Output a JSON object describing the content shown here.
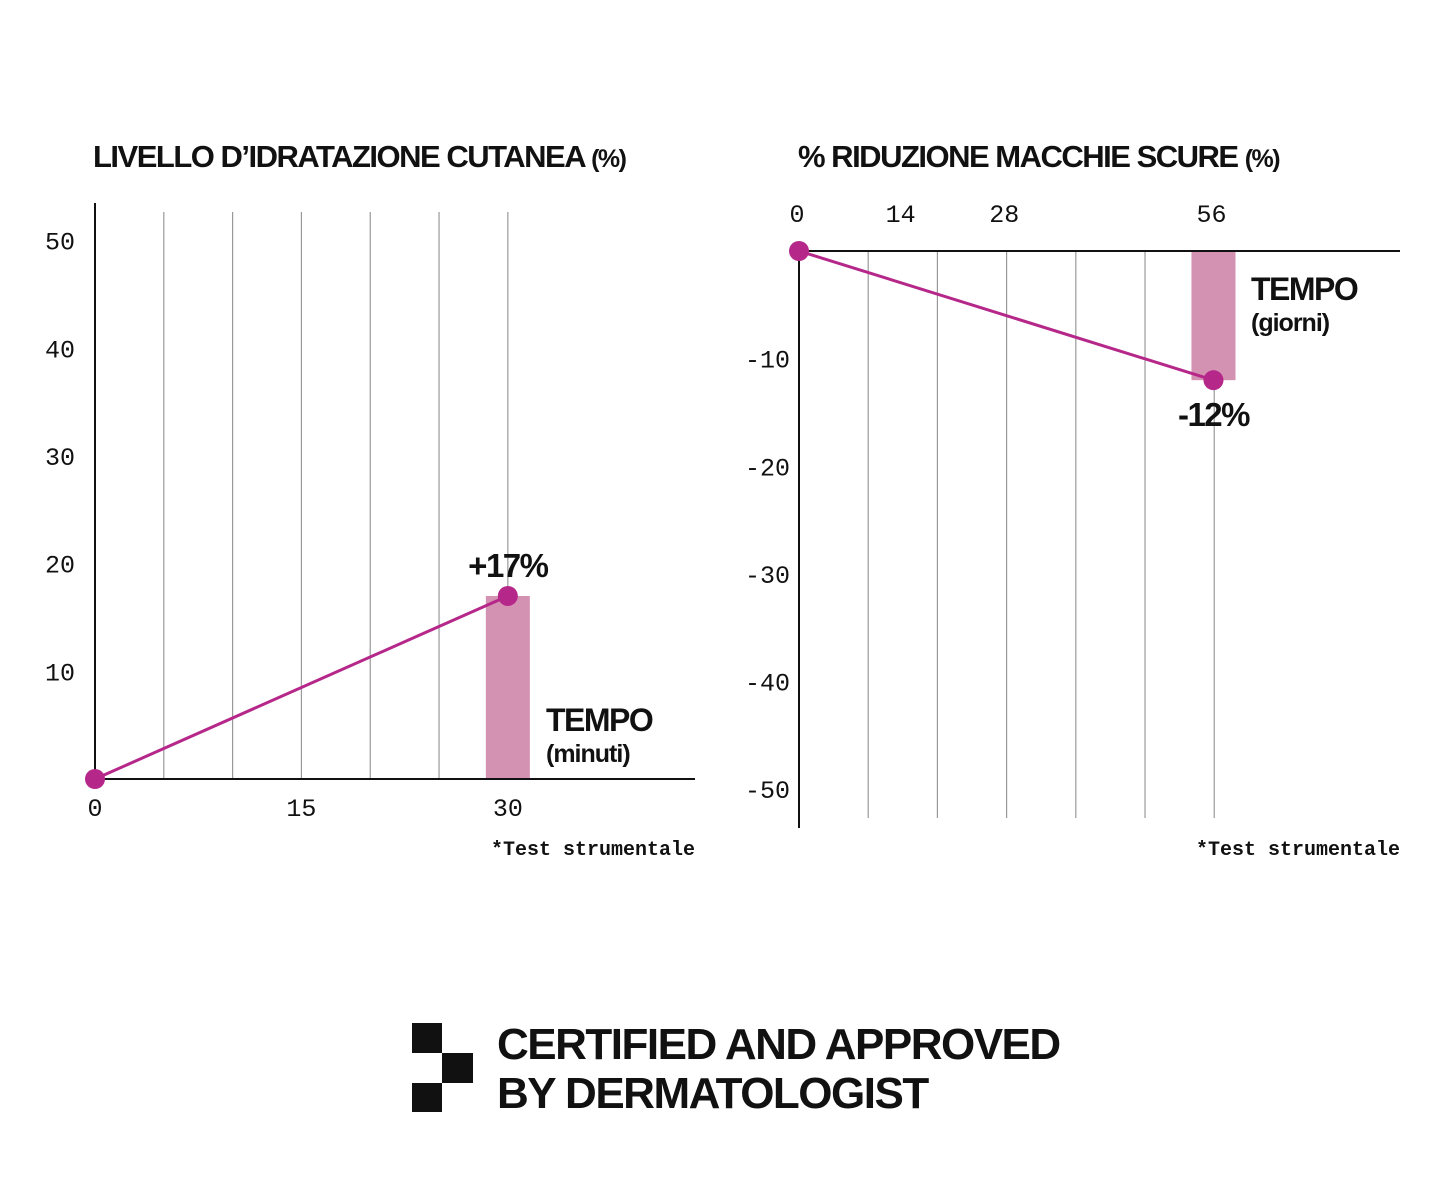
{
  "colors": {
    "line": "#b5288a",
    "bar": "#d492b2",
    "axis": "#111111",
    "grid": "#999999",
    "text": "#111111"
  },
  "chart_data": [
    {
      "type": "line",
      "title": "LIVELLO D’IDRATAZIONE CUTANEA",
      "title_unit": "(%)",
      "x": [
        0,
        30
      ],
      "y": [
        0,
        17
      ],
      "x_ticks": [
        "0",
        "15",
        "30"
      ],
      "y_ticks": [
        "10",
        "20",
        "30",
        "40",
        "50"
      ],
      "xlim": [
        0,
        43.6
      ],
      "ylim": [
        0,
        53.5
      ],
      "x_axis_label": "TEMPO",
      "x_axis_unit": "(minuti)",
      "highlight_x": 30,
      "data_label": "+17%",
      "note": "*Test strumentale",
      "grid": true
    },
    {
      "type": "line",
      "title": "% RIDUZIONE MACCHIE SCURE",
      "title_unit": "(%)",
      "x": [
        0,
        56
      ],
      "y": [
        0,
        -12
      ],
      "x_ticks": [
        "0",
        "14",
        "28",
        "56"
      ],
      "y_ticks": [
        "-10",
        "-20",
        "-30",
        "-40",
        "-50"
      ],
      "xlim": [
        0,
        81.2
      ],
      "ylim": [
        -53.6,
        0
      ],
      "x_axis_label": "TEMPO",
      "x_axis_unit": "(giorni)",
      "highlight_x": 56,
      "data_label": "-12%",
      "note": "*Test strumentale",
      "grid": true
    }
  ],
  "badge": {
    "line1": "CERTIFIED AND APPROVED",
    "line2": "BY DERMATOLOGIST",
    "icon": "checker-icon"
  }
}
